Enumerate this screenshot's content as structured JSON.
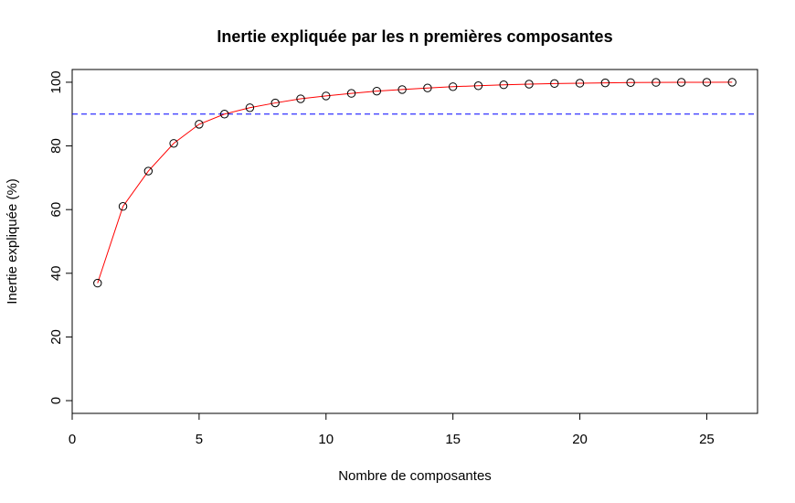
{
  "chart_data": {
    "type": "line",
    "title": "Inertie expliquée par les n premières composantes",
    "xlabel": "Nombre de composantes",
    "ylabel": "Inertie expliquée (%)",
    "xlim": [
      0,
      27
    ],
    "ylim": [
      -4,
      104
    ],
    "x_ticks": [
      0,
      5,
      10,
      15,
      20,
      25
    ],
    "y_ticks": [
      0,
      20,
      40,
      60,
      80,
      100
    ],
    "x_tick_labels": [
      "0",
      "5",
      "10",
      "15",
      "20",
      "25"
    ],
    "y_tick_labels": [
      "0",
      "20",
      "40",
      "60",
      "80",
      "100"
    ],
    "grid": false,
    "series": [
      {
        "x": [
          1,
          2,
          3,
          4,
          5,
          6,
          7,
          8,
          9,
          10,
          11,
          12,
          13,
          14,
          15,
          16,
          17,
          18,
          19,
          20,
          21,
          22,
          23,
          24,
          25,
          26
        ],
        "values": [
          36.9,
          61.0,
          72.1,
          80.8,
          86.8,
          90.0,
          92.0,
          93.5,
          94.8,
          95.7,
          96.5,
          97.2,
          97.7,
          98.2,
          98.6,
          98.9,
          99.2,
          99.4,
          99.6,
          99.7,
          99.8,
          99.9,
          99.95,
          99.98,
          99.99,
          100.0
        ],
        "line_color": "#ff0000",
        "marker": "open-circle",
        "marker_color": "#000000"
      }
    ],
    "reference_lines": [
      {
        "orientation": "horizontal",
        "y": 90,
        "color": "#0000ff",
        "style": "dashed"
      }
    ]
  }
}
